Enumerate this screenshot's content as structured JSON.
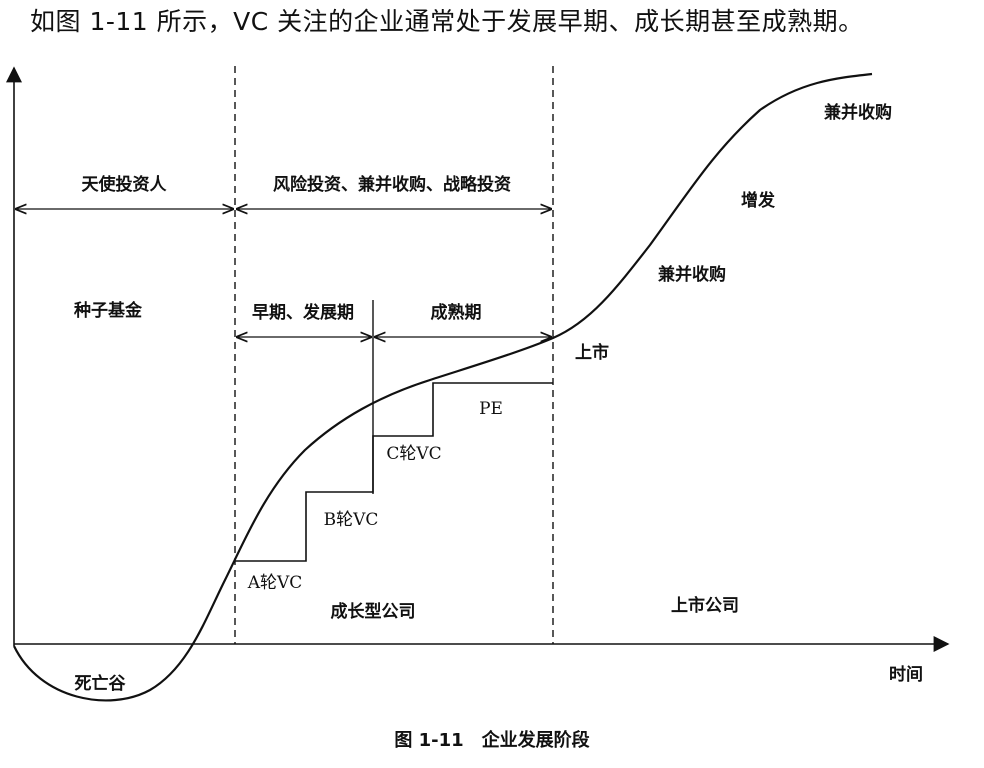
{
  "intro_text": "如图 1-11 所示，VC 关注的企业通常处于发展早期、成长期甚至成熟期。",
  "figure": {
    "caption": "图 1-11　企业发展阶段",
    "x_axis_label": "时间",
    "range_labels": {
      "angel": "天使投资人",
      "vc_range": "风险投资、兼并收购、战略投资",
      "early": "早期、发展期",
      "mature": "成熟期"
    },
    "stage_labels": {
      "seed": "种子基金",
      "death_valley": "死亡谷",
      "growth_company": "成长型公司",
      "listed_company": "上市公司"
    },
    "step_labels": {
      "a_round": "A轮VC",
      "b_round": "B轮VC",
      "c_round": "C轮VC",
      "pe": "PE"
    },
    "post_ipo_labels": {
      "ipo": "上市",
      "ma_1": "兼并收购",
      "follow_on": "增发",
      "ma_2": "兼并收购"
    }
  }
}
